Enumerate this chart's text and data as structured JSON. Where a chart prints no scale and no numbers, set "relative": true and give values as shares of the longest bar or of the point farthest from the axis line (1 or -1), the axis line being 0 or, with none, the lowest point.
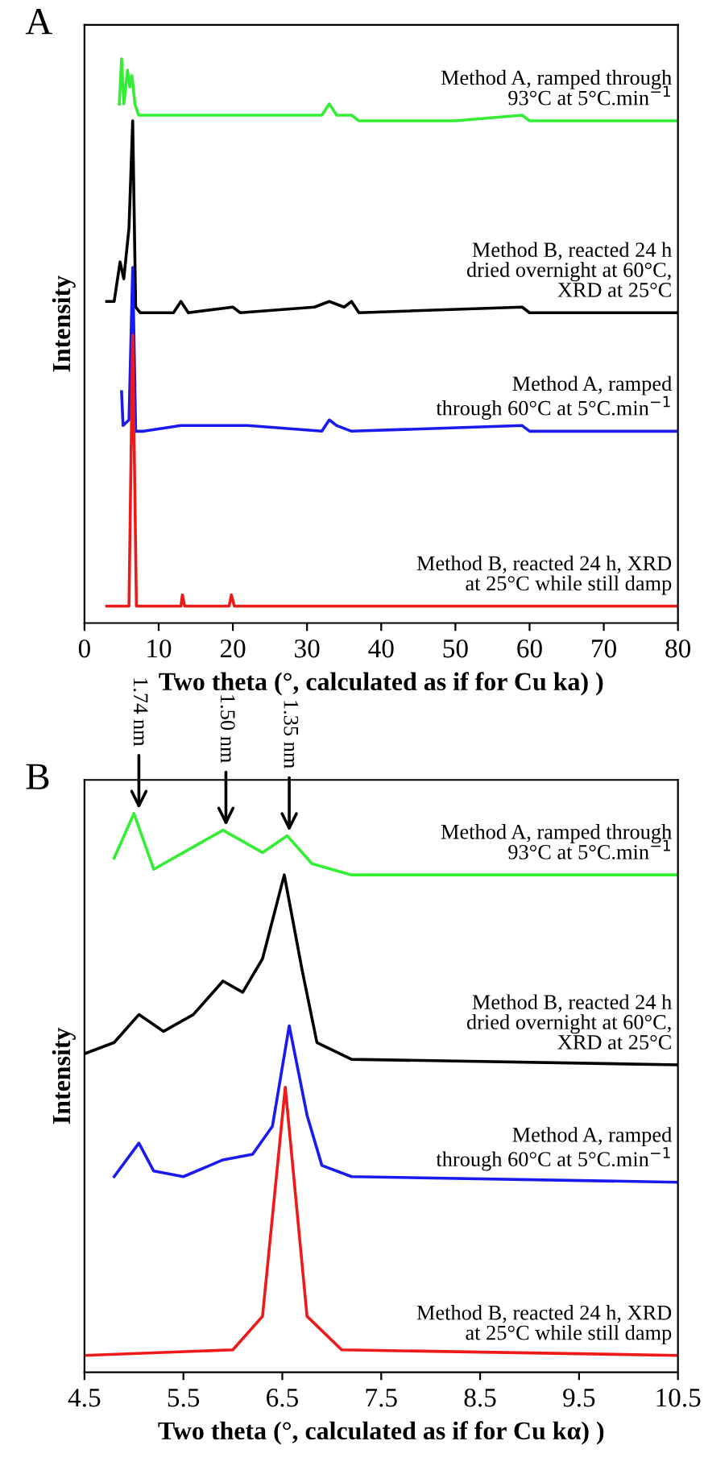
{
  "chart_data": [
    {
      "type": "line",
      "title": "A",
      "xlabel": "Two theta (°, calculated as if for Cu ka) )",
      "ylabel": "Intensity",
      "relative": true,
      "xlim": [
        0,
        80
      ],
      "xticks": [
        0,
        10,
        20,
        30,
        40,
        50,
        60,
        70,
        80
      ],
      "tick_labels": "x",
      "grid": false,
      "legend": false,
      "line_style": "solid",
      "marker": "none",
      "series": [
        {
          "name": "Method A, ramped through\n93°C at 5°C.min$^{−1}$",
          "color": "#33ee33",
          "x": [
            4.7,
            5.0,
            5.3,
            5.8,
            6.1,
            6.4,
            6.8,
            7.3,
            15,
            22,
            25,
            32,
            33,
            34,
            36,
            37,
            50,
            59,
            60,
            80
          ],
          "values": [
            0.92,
            1.0,
            0.92,
            0.98,
            0.95,
            0.97,
            0.92,
            0.9,
            0.9,
            0.9,
            0.9,
            0.9,
            0.92,
            0.9,
            0.9,
            0.89,
            0.89,
            0.9,
            0.89,
            0.89
          ]
        },
        {
          "name": "Method B, reacted 24 h\ndried overnight at 60°C,\nXRD at 25°C",
          "color": "#000000",
          "x": [
            3,
            4,
            4.8,
            5.3,
            6.0,
            6.5,
            6.9,
            7.5,
            12,
            13,
            14,
            20,
            21,
            31,
            33,
            35,
            36,
            37,
            59,
            60,
            80
          ],
          "values": [
            0.57,
            0.57,
            0.64,
            0.61,
            0.7,
            0.89,
            0.56,
            0.55,
            0.55,
            0.57,
            0.55,
            0.56,
            0.55,
            0.56,
            0.57,
            0.56,
            0.57,
            0.55,
            0.56,
            0.55,
            0.55
          ]
        },
        {
          "name": "Method A, ramped\nthrough 60°C at 5°C.min$^{−1}$",
          "color": "#1a1aee",
          "x": [
            5,
            5.2,
            6.0,
            6.5,
            6.9,
            8,
            13,
            20,
            22,
            32,
            33,
            34,
            36,
            59,
            60,
            80
          ],
          "values": [
            0.41,
            0.35,
            0.36,
            0.63,
            0.34,
            0.34,
            0.35,
            0.35,
            0.35,
            0.34,
            0.36,
            0.35,
            0.34,
            0.35,
            0.34,
            0.34
          ]
        },
        {
          "name": "Method B, reacted 24 h, XRD\nat 25°C while still damp",
          "color": "#ee1a1a",
          "x": [
            3,
            6,
            6.5,
            7,
            13,
            13.2,
            13.5,
            19.5,
            19.8,
            20.2,
            33,
            80
          ],
          "values": [
            0.03,
            0.03,
            0.51,
            0.03,
            0.03,
            0.05,
            0.03,
            0.03,
            0.05,
            0.03,
            0.03,
            0.03
          ]
        }
      ]
    },
    {
      "type": "line",
      "title": "B",
      "xlabel": "Two theta (°, calculated as if for Cu kα) )",
      "ylabel": "Intensity",
      "relative": true,
      "xlim": [
        4.5,
        10.5
      ],
      "xticks": [
        4.5,
        5.5,
        6.5,
        7.5,
        8.5,
        9.5,
        10.5
      ],
      "tick_labels": "x",
      "grid": false,
      "legend": false,
      "line_style": "solid",
      "marker": "none",
      "annotations": [
        {
          "text": "1.74 nm",
          "x": 5.05,
          "y": 1.0
        },
        {
          "text": "1.50 nm",
          "x": 5.93,
          "y": 0.97
        },
        {
          "text": "1.35 nm",
          "x": 6.57,
          "y": 0.96
        }
      ],
      "series": [
        {
          "name": "Method A, ramped through\n93°C at 5°C.min$^{−1}$",
          "color": "#33ee33",
          "x": [
            4.8,
            5.0,
            5.2,
            5.5,
            5.9,
            6.3,
            6.55,
            6.8,
            7.2,
            10.5
          ],
          "values": [
            0.92,
            1.0,
            0.9,
            0.93,
            0.97,
            0.93,
            0.96,
            0.91,
            0.89,
            0.89
          ]
        },
        {
          "name": "Method B, reacted 24 h\ndried overnight at 60°C,\nXRD at 25°C",
          "color": "#000000",
          "x": [
            4.5,
            4.8,
            5.05,
            5.3,
            5.6,
            5.9,
            6.1,
            6.3,
            6.52,
            6.7,
            6.85,
            7.2,
            10.5
          ],
          "values": [
            0.57,
            0.59,
            0.64,
            0.61,
            0.64,
            0.7,
            0.68,
            0.74,
            0.89,
            0.72,
            0.59,
            0.56,
            0.55
          ]
        },
        {
          "name": "Method A, ramped\nthrough 60°C at 5°C.min$^{−1}$",
          "color": "#1a1aee",
          "x": [
            4.8,
            5.05,
            5.2,
            5.5,
            5.9,
            6.2,
            6.4,
            6.57,
            6.75,
            6.9,
            7.2,
            10.5
          ],
          "values": [
            0.35,
            0.41,
            0.36,
            0.35,
            0.38,
            0.39,
            0.44,
            0.62,
            0.46,
            0.37,
            0.35,
            0.34
          ]
        },
        {
          "name": "Method B, reacted 24 h, XRD\nat 25°C while still damp",
          "color": "#ee1a1a",
          "x": [
            4.5,
            6.0,
            6.3,
            6.53,
            6.75,
            7.1,
            10.5
          ],
          "values": [
            0.03,
            0.04,
            0.1,
            0.51,
            0.1,
            0.04,
            0.03
          ]
        }
      ]
    }
  ]
}
